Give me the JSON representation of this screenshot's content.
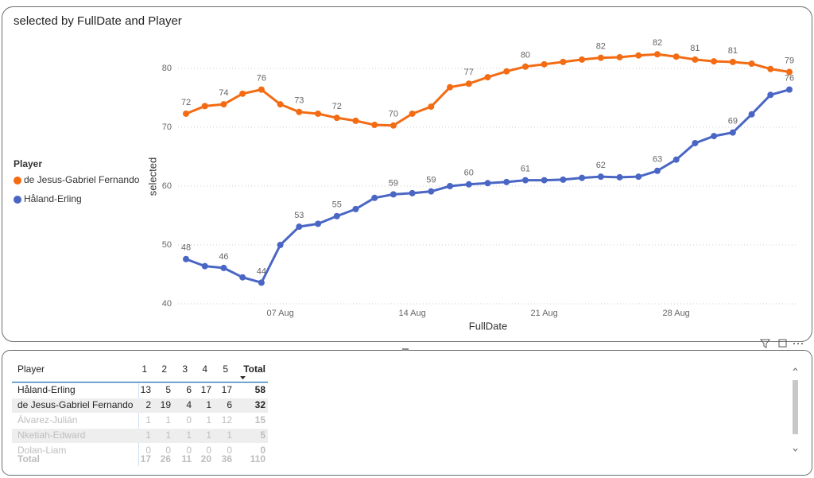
{
  "chart_data": {
    "type": "line",
    "title": "selected by FullDate and Player",
    "x_label": "FullDate",
    "y_label": "selected",
    "legend_title": "Player",
    "legend": "left",
    "x": [
      "02 Aug",
      "03 Aug",
      "04 Aug",
      "05 Aug",
      "06 Aug",
      "07 Aug",
      "08 Aug",
      "09 Aug",
      "10 Aug",
      "11 Aug",
      "12 Aug",
      "13 Aug",
      "14 Aug",
      "15 Aug",
      "16 Aug",
      "17 Aug",
      "18 Aug",
      "19 Aug",
      "20 Aug",
      "21 Aug",
      "22 Aug",
      "23 Aug",
      "24 Aug",
      "25 Aug",
      "26 Aug",
      "27 Aug",
      "28 Aug",
      "29 Aug",
      "30 Aug",
      "31 Aug",
      "01 Sep",
      "02 Sep",
      "03 Sep"
    ],
    "xticks": [
      "07 Aug",
      "14 Aug",
      "21 Aug",
      "28 Aug"
    ],
    "ylim": [
      40,
      85
    ],
    "yticks": [
      40,
      50,
      60,
      70,
      80
    ],
    "grid": true,
    "series": [
      {
        "name": "de Jesus-Gabriel Fernando",
        "color": "#f36b13",
        "values": [
          72.3,
          73.6,
          73.9,
          75.7,
          76.4,
          73.9,
          72.6,
          72.3,
          71.6,
          71.1,
          70.4,
          70.3,
          72.3,
          73.5,
          76.8,
          77.4,
          78.5,
          79.5,
          80.3,
          80.7,
          81.1,
          81.5,
          81.8,
          81.9,
          82.2,
          82.4,
          82.0,
          81.5,
          81.2,
          81.1,
          80.8,
          79.9,
          79.4
        ],
        "value_labels": [
          "72",
          null,
          "74",
          null,
          "76",
          null,
          "73",
          null,
          "72",
          null,
          null,
          "70",
          null,
          null,
          null,
          "77",
          null,
          null,
          "80",
          null,
          null,
          null,
          "82",
          null,
          null,
          "82",
          null,
          "81",
          null,
          "81",
          null,
          null,
          "79"
        ]
      },
      {
        "name": "Håland-Erling",
        "color": "#4a66c5",
        "values": [
          47.6,
          46.4,
          46.1,
          44.5,
          43.6,
          50.0,
          53.1,
          53.6,
          54.9,
          56.1,
          58.0,
          58.6,
          58.8,
          59.1,
          60.0,
          60.3,
          60.5,
          60.7,
          61.0,
          61.0,
          61.1,
          61.4,
          61.6,
          61.5,
          61.6,
          62.6,
          64.5,
          67.3,
          68.5,
          69.1,
          72.2,
          75.5,
          76.4
        ],
        "value_labels": [
          "48",
          null,
          "46",
          null,
          "44",
          null,
          "53",
          null,
          "55",
          null,
          null,
          "59",
          null,
          "59",
          null,
          "60",
          null,
          null,
          "61",
          null,
          null,
          null,
          "62",
          null,
          null,
          "63",
          null,
          null,
          null,
          "69",
          null,
          null,
          "76"
        ]
      }
    ]
  },
  "table": {
    "columns": [
      "Player",
      "1",
      "2",
      "3",
      "4",
      "5",
      "Total"
    ],
    "rows": [
      [
        "Håland-Erling",
        13,
        5,
        6,
        17,
        17,
        58
      ],
      [
        "de Jesus-Gabriel Fernando",
        2,
        19,
        4,
        1,
        6,
        32
      ],
      [
        "Álvarez-Julián",
        1,
        1,
        0,
        1,
        12,
        15
      ],
      [
        "Nketiah-Edward",
        1,
        1,
        1,
        1,
        1,
        5
      ],
      [
        "Dolan-Liam",
        0,
        0,
        0,
        0,
        0,
        0
      ]
    ],
    "total": [
      "Total",
      17,
      26,
      11,
      20,
      36,
      110
    ]
  }
}
